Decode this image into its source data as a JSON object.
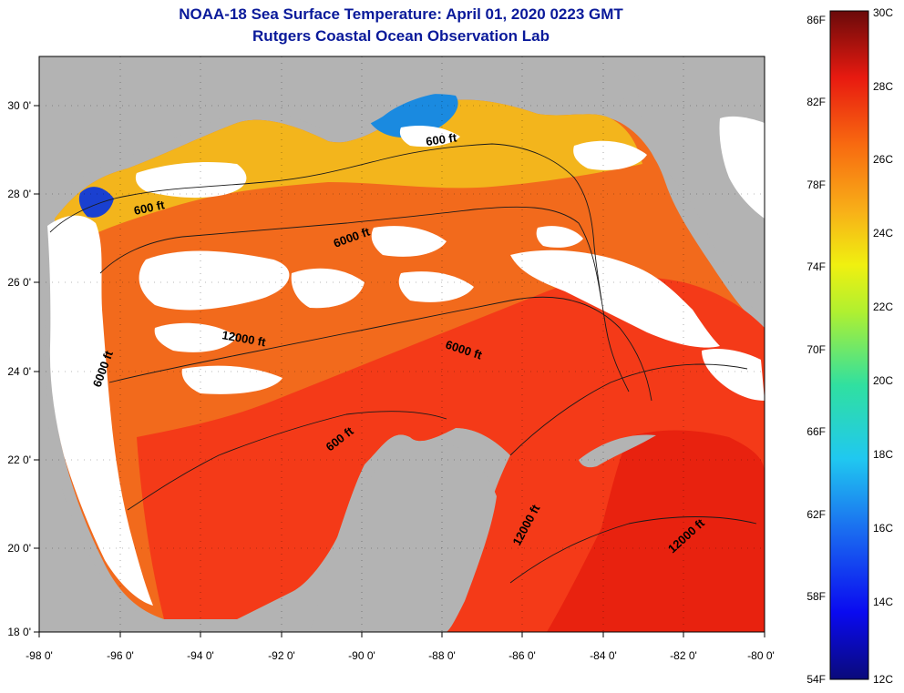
{
  "title": {
    "line1": "NOAA-18 Sea Surface Temperature:  April 01, 2020 0223 GMT",
    "line2": "Rutgers Coastal Ocean Observation Lab"
  },
  "map": {
    "region": "Gulf of Mexico",
    "lon_range": [
      -98,
      -80
    ],
    "lat_range": [
      18,
      31
    ],
    "colors": {
      "land": "#b3b3b3",
      "cloud": "#ffffff",
      "warm": "#f43a18",
      "hot": "#e21c10",
      "mid": "#f7861e",
      "cool": "#f2c01c",
      "cold": "#18a8e6",
      "very_cold": "#1030c8"
    }
  },
  "axes": {
    "x_ticks": [
      "-98 0'",
      "-96 0'",
      "-94 0'",
      "-92 0'",
      "-90 0'",
      "-88 0'",
      "-86 0'",
      "-84 0'",
      "-82 0'",
      "-80 0'"
    ],
    "y_ticks": [
      "30 0'",
      "28 0'",
      "26 0'",
      "24 0'",
      "22 0'",
      "20 0'",
      "18 0'"
    ]
  },
  "contour_labels": [
    "600 ft",
    "600 ft",
    "6000 ft",
    "12000 ft",
    "6000 ft",
    "6000 ft",
    "600 ft",
    "12000 ft",
    "12000 ft"
  ],
  "colorbar": {
    "fahrenheit_labels": [
      "86F",
      "82F",
      "78F",
      "74F",
      "70F",
      "66F",
      "62F",
      "58F",
      "54F"
    ],
    "celsius_labels": [
      "30C",
      "28C",
      "26C",
      "24C",
      "22C",
      "20C",
      "18C",
      "16C",
      "14C",
      "12C"
    ],
    "range_c": [
      12,
      30
    ],
    "range_f": [
      54,
      86
    ]
  }
}
